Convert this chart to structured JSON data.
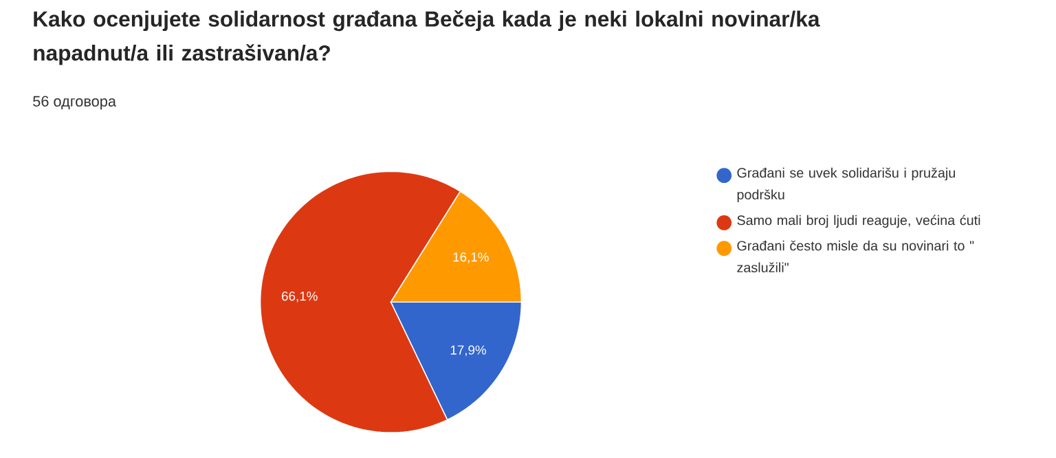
{
  "chart_data": {
    "type": "pie",
    "title": "Kako ocenjujete solidarnost građana Bečeja kada je neki lokalni novinar/ka napadnut/a ili zastrašivan/a?",
    "subtitle": "56 одговора",
    "categories": [
      "Građani se uvek solidarišu i pružaju podršku",
      "Samo mali broj ljudi reaguje, većina ćuti",
      "Građani često misle da su novinari to \" zaslužili\""
    ],
    "values": [
      17.9,
      66.1,
      16.1
    ],
    "colors": [
      "#3366cc",
      "#dc3912",
      "#ff9900"
    ],
    "value_labels": [
      "17,9%",
      "66,1%",
      "16,1%"
    ],
    "legend": "right"
  }
}
